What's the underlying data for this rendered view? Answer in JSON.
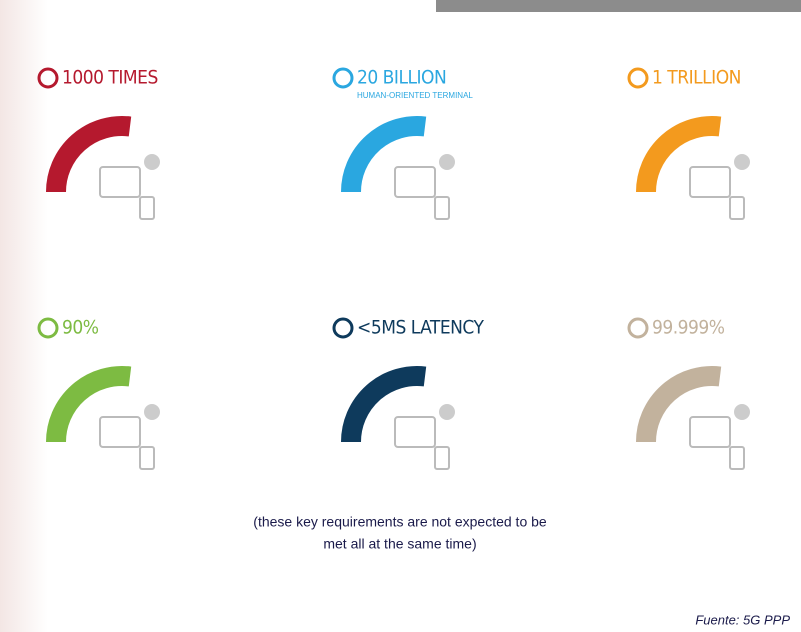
{
  "items": [
    {
      "title": "1000 TIMES",
      "color": "#b5192e"
    },
    {
      "title": "20 BILLION",
      "subtitle": "HUMAN-ORIENTED TERMINAL",
      "color": "#2aa7e0"
    },
    {
      "title": "1 TRILLION",
      "color": "#f39a1e"
    },
    {
      "title": "90%",
      "color": "#7dbb42"
    },
    {
      "title": "<5MS LATENCY",
      "color": "#0e3a5c"
    },
    {
      "title": "99.999%",
      "color": "#c2b29d"
    }
  ],
  "note_lines": [
    "(these key requirements  are not  expected to be",
    "met all at the same time)"
  ],
  "source": "Fuente:   5G PPP"
}
